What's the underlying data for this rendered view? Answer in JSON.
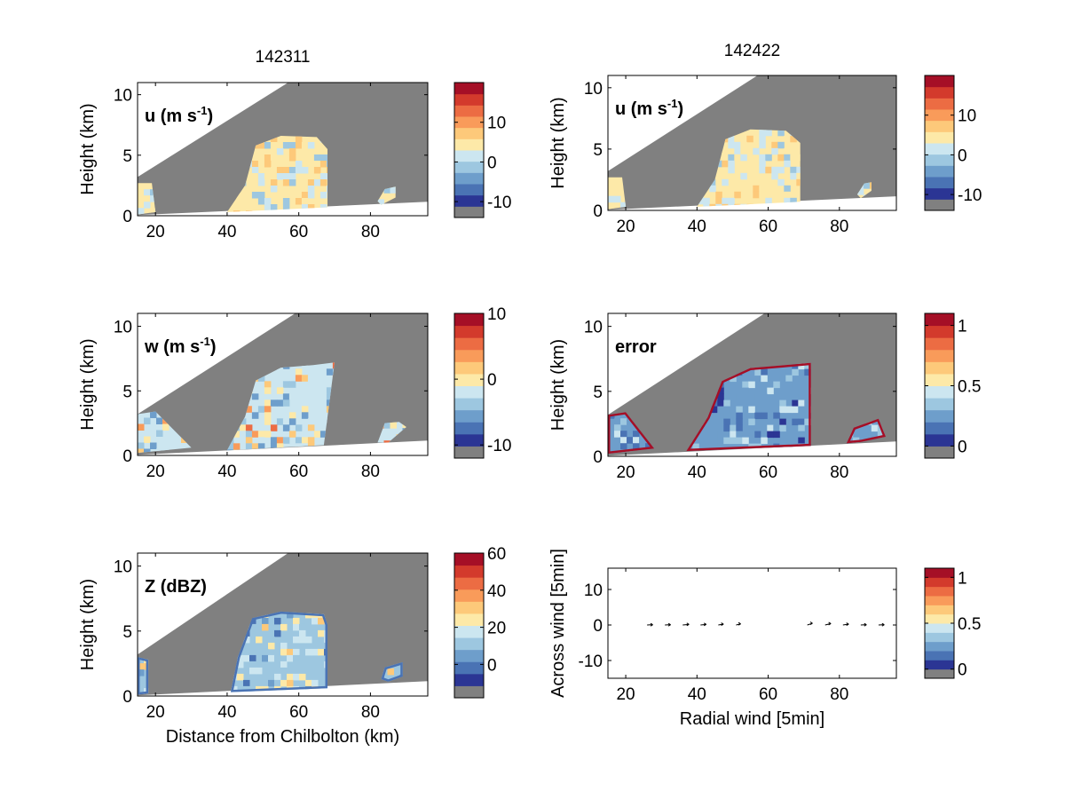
{
  "figure": {
    "column_titles": [
      "142311",
      "142422"
    ]
  },
  "colors": {
    "terrain_grey": "#808080",
    "palette": [
      "#808080",
      "#2b3594",
      "#4a73b4",
      "#6e9ecb",
      "#9dc7e0",
      "#cce6f0",
      "#fde9a8",
      "#fdc97a",
      "#f99b5a",
      "#ec6c43",
      "#d33a2c",
      "#a50f26"
    ]
  },
  "chart_data": [
    {
      "id": "u-142311",
      "type": "heatmap",
      "title": "142311",
      "inset_label": "u (m s",
      "inset_label_sup": "-1",
      "inset_label_end": ")",
      "ylabel": "Height (km)",
      "xlabel": "",
      "xlim": [
        15,
        96
      ],
      "ylim": [
        0,
        11
      ],
      "xticks": [
        20,
        40,
        60,
        80
      ],
      "yticks": [
        0,
        5,
        10
      ],
      "colorbar": {
        "ticks": [
          -10,
          0,
          10
        ],
        "labels": [
          "-10",
          "0",
          "10"
        ],
        "range": [
          -14,
          20
        ]
      },
      "echo": {
        "cloud_main": [
          [
            40,
            0.3
          ],
          [
            45,
            2.5
          ],
          [
            48,
            5.8
          ],
          [
            55,
            6.6
          ],
          [
            65,
            6.5
          ],
          [
            68,
            5.5
          ],
          [
            68,
            0.7
          ],
          [
            40,
            0.3
          ]
        ],
        "cloud_left": [
          [
            15,
            0.1
          ],
          [
            15,
            2.7
          ],
          [
            19,
            2.7
          ],
          [
            20,
            0.3
          ]
        ],
        "cloud_right": [
          [
            82,
            1.2
          ],
          [
            84,
            2.2
          ],
          [
            87,
            2.4
          ],
          [
            87,
            1.5
          ],
          [
            83,
            0.9
          ]
        ]
      }
    },
    {
      "id": "u-142422",
      "type": "heatmap",
      "title": "142422",
      "inset_label": "u (m s",
      "inset_label_sup": "-1",
      "inset_label_end": ")",
      "ylabel": "Height (km)",
      "xlabel": "",
      "xlim": [
        15,
        96
      ],
      "ylim": [
        0,
        11
      ],
      "xticks": [
        20,
        40,
        60,
        80
      ],
      "yticks": [
        0,
        5,
        10
      ],
      "colorbar": {
        "ticks": [
          -10,
          0,
          10
        ],
        "labels": [
          "-10",
          "0",
          "10"
        ],
        "range": [
          -14,
          20
        ]
      },
      "echo": {
        "cloud_main": [
          [
            40,
            0.3
          ],
          [
            45,
            2.5
          ],
          [
            48,
            5.8
          ],
          [
            55,
            6.6
          ],
          [
            65,
            6.5
          ],
          [
            69,
            5.5
          ],
          [
            69,
            0.7
          ],
          [
            40,
            0.3
          ]
        ],
        "cloud_left": [
          [
            15,
            0.1
          ],
          [
            15,
            2.7
          ],
          [
            19,
            2.7
          ],
          [
            20,
            0.3
          ]
        ],
        "cloud_right": [
          [
            85,
            1.3
          ],
          [
            87,
            2.2
          ],
          [
            89,
            2.3
          ],
          [
            89,
            1.6
          ],
          [
            86,
            1.0
          ]
        ]
      }
    },
    {
      "id": "w-142311",
      "type": "heatmap",
      "inset_label": "w (m s",
      "inset_label_sup": "-1",
      "inset_label_end": ")",
      "ylabel": "Height (km)",
      "xlabel": "",
      "xlim": [
        15,
        96
      ],
      "ylim": [
        0,
        11
      ],
      "xticks": [
        20,
        40,
        60,
        80
      ],
      "yticks": [
        0,
        5,
        10
      ],
      "colorbar": {
        "ticks": [
          -10,
          0,
          10
        ],
        "labels": [
          "-10",
          "0",
          "10"
        ],
        "range": [
          -12,
          10
        ]
      },
      "echo": {
        "cloud_main": [
          [
            40,
            0.4
          ],
          [
            45,
            3.0
          ],
          [
            48,
            5.8
          ],
          [
            55,
            6.8
          ],
          [
            64,
            7.0
          ],
          [
            70,
            7.2
          ],
          [
            67,
            0.8
          ],
          [
            40,
            0.4
          ]
        ],
        "cloud_left": [
          [
            15,
            0.2
          ],
          [
            15,
            3.2
          ],
          [
            20,
            3.4
          ],
          [
            30,
            0.6
          ]
        ],
        "cloud_right": [
          [
            82,
            1.0
          ],
          [
            84,
            2.5
          ],
          [
            88,
            2.6
          ],
          [
            90,
            2.2
          ],
          [
            85,
            1.0
          ]
        ]
      }
    },
    {
      "id": "error-142422",
      "type": "heatmap",
      "inset_label": "error",
      "inset_label_sup": "",
      "inset_label_end": "",
      "ylabel": "Height (km)",
      "xlabel": "",
      "xlim": [
        15,
        96
      ],
      "ylim": [
        0,
        11
      ],
      "xticks": [
        20,
        40,
        60,
        80
      ],
      "yticks": [
        0,
        5,
        10
      ],
      "colorbar": {
        "ticks": [
          0,
          0.5,
          1
        ],
        "labels": [
          "0",
          "0.5",
          "1"
        ],
        "range": [
          -0.1,
          1.1
        ]
      },
      "echo": {
        "cloud_main": [
          [
            37,
            0.4
          ],
          [
            43,
            3.0
          ],
          [
            47,
            5.8
          ],
          [
            55,
            6.8
          ],
          [
            64,
            7.0
          ],
          [
            72,
            7.2
          ],
          [
            72,
            0.8
          ],
          [
            37,
            0.4
          ]
        ],
        "cloud_left": [
          [
            15,
            0.2
          ],
          [
            15,
            3.2
          ],
          [
            20,
            3.4
          ],
          [
            28,
            0.6
          ]
        ],
        "cloud_right": [
          [
            82,
            1.0
          ],
          [
            84,
            2.2
          ],
          [
            91,
            2.9
          ],
          [
            93,
            1.5
          ],
          [
            86,
            1.1
          ]
        ]
      }
    },
    {
      "id": "z-142311",
      "type": "heatmap",
      "inset_label": "Z (dBZ)",
      "inset_label_sup": "",
      "inset_label_end": "",
      "ylabel": "Height (km)",
      "xlabel": "Distance from Chilbolton (km)",
      "xlim": [
        15,
        96
      ],
      "ylim": [
        0,
        11
      ],
      "xticks": [
        20,
        40,
        60,
        80
      ],
      "yticks": [
        0,
        5,
        10
      ],
      "colorbar": {
        "ticks": [
          0,
          20,
          40,
          60
        ],
        "labels": [
          "0",
          "20",
          "40",
          "60"
        ],
        "range": [
          -18,
          60
        ]
      },
      "echo": {
        "cloud_main": [
          [
            41,
            0.3
          ],
          [
            43,
            3.0
          ],
          [
            47,
            6.0
          ],
          [
            55,
            6.5
          ],
          [
            67,
            6.3
          ],
          [
            68,
            5.5
          ],
          [
            68,
            0.6
          ],
          [
            41,
            0.3
          ]
        ],
        "cloud_left": [
          [
            15,
            0.1
          ],
          [
            15,
            3.0
          ],
          [
            18,
            2.8
          ],
          [
            18,
            0.2
          ]
        ],
        "cloud_right": [
          [
            83,
            1.3
          ],
          [
            84,
            2.2
          ],
          [
            89,
            2.6
          ],
          [
            89,
            1.5
          ],
          [
            85,
            1.1
          ]
        ]
      }
    },
    {
      "id": "wind-142422",
      "type": "scatter",
      "ylabel": "Across wind [5min]",
      "xlabel": "Radial wind [5min]",
      "xlim": [
        15,
        96
      ],
      "ylim": [
        -15,
        16
      ],
      "xticks": [
        20,
        40,
        60,
        80
      ],
      "yticks": [
        -10,
        0,
        10
      ],
      "colorbar": {
        "ticks": [
          0,
          0.5,
          1
        ],
        "labels": [
          "0",
          "0.5",
          "1"
        ],
        "range": [
          -0.1,
          1.1
        ]
      },
      "vectors": [
        {
          "x": 26,
          "y": 0,
          "u": 2.0,
          "v": 0.1
        },
        {
          "x": 31,
          "y": 0,
          "u": 2.0,
          "v": 0.1
        },
        {
          "x": 36,
          "y": 0,
          "u": 2.2,
          "v": 0.2
        },
        {
          "x": 41,
          "y": 0,
          "u": 2.0,
          "v": 0.2
        },
        {
          "x": 46,
          "y": 0,
          "u": 1.8,
          "v": 0.3
        },
        {
          "x": 51,
          "y": 0,
          "u": 1.6,
          "v": 0.4
        },
        {
          "x": 71,
          "y": 0,
          "u": 1.8,
          "v": 0.6
        },
        {
          "x": 76,
          "y": 0,
          "u": 2.0,
          "v": 0.5
        },
        {
          "x": 81,
          "y": 0,
          "u": 2.0,
          "v": 0.3
        },
        {
          "x": 86,
          "y": 0,
          "u": 2.0,
          "v": 0.1
        },
        {
          "x": 91,
          "y": 0,
          "u": 2.0,
          "v": 0.1
        }
      ]
    }
  ]
}
